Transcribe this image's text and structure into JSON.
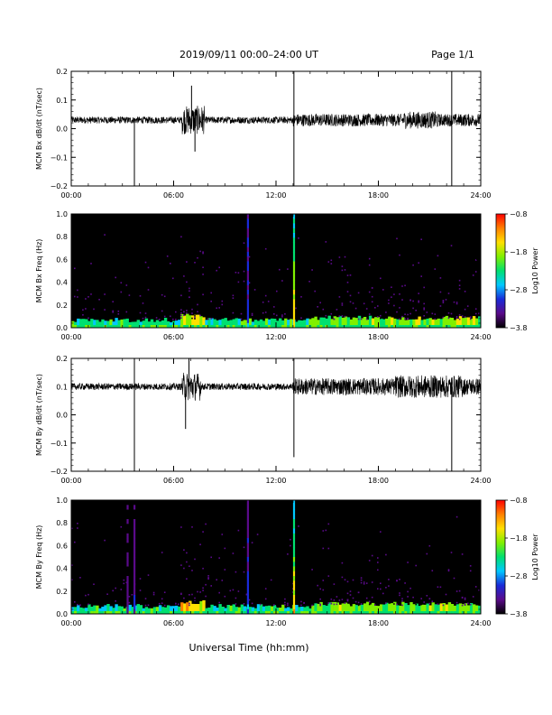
{
  "header": {
    "title": "2019/09/11  00:00–24:00 UT",
    "page": "Page 1/1"
  },
  "xlabel_main": "Universal Time (hh:mm)",
  "colors": {
    "trace": "#000000",
    "spectrogram_background": "#000000",
    "colorbar_stops": [
      "#000000",
      "#5a0a8a",
      "#1a2ad8",
      "#00c8ff",
      "#00e070",
      "#80f000",
      "#ffe000",
      "#ff8000",
      "#ff0000"
    ]
  },
  "chart_data": [
    {
      "type": "line",
      "ylabel": "MCM Bx dB/dt (nT/sec)",
      "xlim": [
        0,
        24
      ],
      "ylim": [
        -0.2,
        0.2
      ],
      "x_ticks": [
        "00:00",
        "06:00",
        "12:00",
        "18:00",
        "24:00"
      ],
      "y_ticks": [
        "0.2",
        "0.1",
        "0.0",
        "−0.1",
        "−0.2"
      ],
      "baseline": 0.03,
      "noise_amplitude": 0.012,
      "active_intervals": [
        {
          "start": 6.5,
          "end": 7.8,
          "amplitude": 0.05
        },
        {
          "start": 13.0,
          "end": 24.0,
          "amplitude": 0.022
        },
        {
          "start": 19.5,
          "end": 21.5,
          "amplitude": 0.03
        }
      ],
      "spikes": [
        {
          "x": 3.7,
          "y": -0.2
        },
        {
          "x": 13.05,
          "y": 0.2
        },
        {
          "x": 13.05,
          "y": -0.2
        },
        {
          "x": 22.3,
          "y": 0.2
        },
        {
          "x": 22.3,
          "y": -0.2
        },
        {
          "x": 7.05,
          "y": 0.15
        },
        {
          "x": 7.25,
          "y": -0.08
        }
      ]
    },
    {
      "type": "heatmap",
      "ylabel": "MCM Bx Freq (Hz)",
      "xlim": [
        0,
        24
      ],
      "ylim": [
        0,
        1.0
      ],
      "x_ticks": [
        "00:00",
        "06:00",
        "12:00",
        "18:00",
        "24:00"
      ],
      "y_ticks": [
        "1.0",
        "0.8",
        "0.6",
        "0.4",
        "0.2",
        "0.0"
      ],
      "colorbar": {
        "label": "Log10 Power",
        "range": [
          -3.8,
          -0.8
        ],
        "ticks": [
          "−0.8",
          "−1.8",
          "−2.8",
          "−3.8"
        ]
      },
      "bright_lines": [
        {
          "x": 13.05,
          "level": 0.85
        },
        {
          "x": 10.35,
          "level": 0.35
        }
      ]
    },
    {
      "type": "line",
      "ylabel": "MCM By dB/dt (nT/sec)",
      "xlim": [
        0,
        24
      ],
      "ylim": [
        -0.2,
        0.2
      ],
      "x_ticks": [
        "00:00",
        "06:00",
        "12:00",
        "18:00",
        "24:00"
      ],
      "y_ticks": [
        "0.2",
        "0.1",
        "0.0",
        "−0.1",
        "−0.2"
      ],
      "baseline": 0.1,
      "noise_amplitude": 0.012,
      "active_intervals": [
        {
          "start": 6.5,
          "end": 7.6,
          "amplitude": 0.05
        },
        {
          "start": 13.0,
          "end": 24.0,
          "amplitude": 0.03
        },
        {
          "start": 19.0,
          "end": 23.0,
          "amplitude": 0.04
        }
      ],
      "spikes": [
        {
          "x": 3.7,
          "y": -0.2
        },
        {
          "x": 3.7,
          "y": 0.2
        },
        {
          "x": 13.05,
          "y": 0.2
        },
        {
          "x": 13.05,
          "y": -0.15
        },
        {
          "x": 22.3,
          "y": -0.2
        },
        {
          "x": 6.7,
          "y": -0.05
        },
        {
          "x": 6.9,
          "y": 0.2
        }
      ]
    },
    {
      "type": "heatmap",
      "ylabel": "MCM By Freq (Hz)",
      "xlim": [
        0,
        24
      ],
      "ylim": [
        0,
        1.0
      ],
      "x_ticks": [
        "00:00",
        "06:00",
        "12:00",
        "18:00",
        "24:00"
      ],
      "y_ticks": [
        "1.0",
        "0.8",
        "0.6",
        "0.4",
        "0.2",
        "0.0"
      ],
      "colorbar": {
        "label": "Log10 Power",
        "range": [
          -3.8,
          -0.8
        ],
        "ticks": [
          "−0.8",
          "−1.8",
          "−2.8",
          "−3.8"
        ]
      },
      "bright_lines": [
        {
          "x": 13.05,
          "level": 0.85
        },
        {
          "x": 10.35,
          "level": 0.35
        },
        {
          "x": 3.7,
          "level": 0.25
        },
        {
          "x": 3.3,
          "level": 0.2
        }
      ]
    }
  ]
}
